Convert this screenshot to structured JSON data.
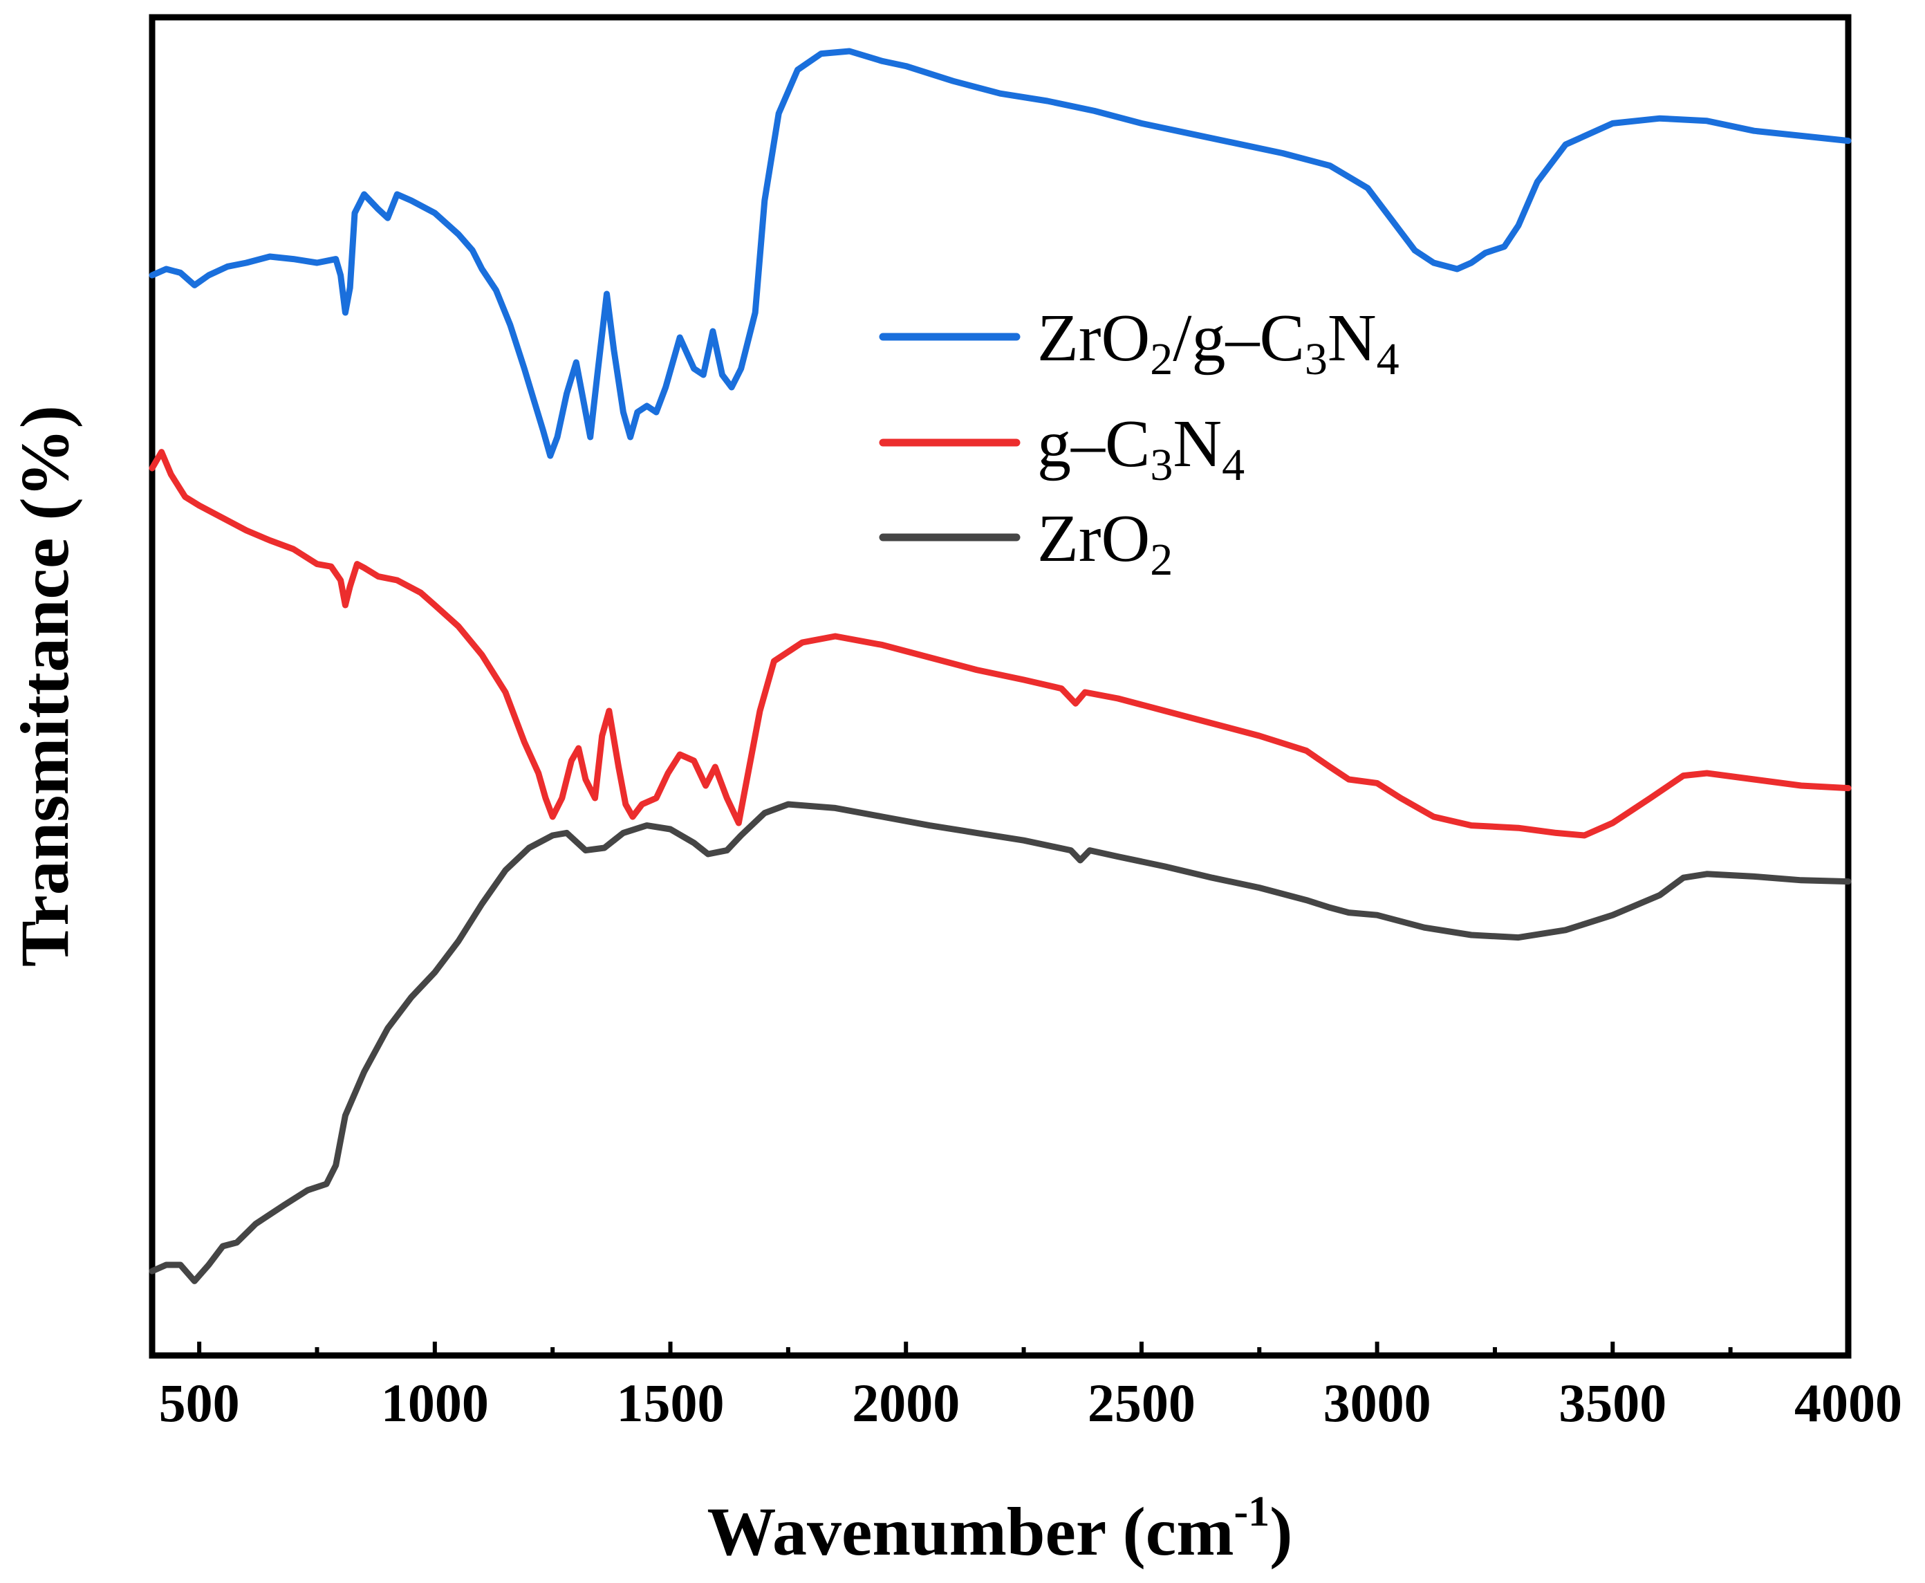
{
  "chart_data": {
    "type": "line",
    "title": "",
    "xlabel": {
      "main": "Wavenumber (cm",
      "sup": "-1",
      "close": ")"
    },
    "ylabel": "Transmittance (%)",
    "xlim": [
      400,
      4000
    ],
    "ylim": [
      0,
      100
    ],
    "x_ticks": [
      500,
      1000,
      1500,
      2000,
      2500,
      3000,
      3500,
      4000
    ],
    "x_tick_labels": [
      "500",
      "1000",
      "1500",
      "2000",
      "2500",
      "3000",
      "3500",
      "4000"
    ],
    "y_ticks_shown": false,
    "legend_position": "upper-right",
    "series": [
      {
        "name": "ZrO2/g-C3N4",
        "label_parts": [
          [
            "ZrO",
            ""
          ],
          [
            "2",
            "sub"
          ],
          [
            "/g–C",
            ""
          ],
          [
            "3",
            "sub"
          ],
          [
            "N",
            ""
          ],
          [
            "4",
            "sub"
          ]
        ],
        "color": "#1a6fdc",
        "points": [
          [
            400,
            84.0
          ],
          [
            430,
            84.5
          ],
          [
            460,
            84.2
          ],
          [
            490,
            83.2
          ],
          [
            520,
            84.0
          ],
          [
            560,
            84.7
          ],
          [
            600,
            85.0
          ],
          [
            650,
            85.5
          ],
          [
            700,
            85.3
          ],
          [
            750,
            85.0
          ],
          [
            790,
            85.3
          ],
          [
            800,
            84.0
          ],
          [
            810,
            81.0
          ],
          [
            820,
            83.0
          ],
          [
            830,
            89.0
          ],
          [
            850,
            90.5
          ],
          [
            880,
            89.3
          ],
          [
            900,
            88.6
          ],
          [
            920,
            90.5
          ],
          [
            950,
            90.0
          ],
          [
            1000,
            89.0
          ],
          [
            1050,
            87.3
          ],
          [
            1080,
            86.0
          ],
          [
            1100,
            84.5
          ],
          [
            1130,
            82.8
          ],
          [
            1160,
            80.0
          ],
          [
            1190,
            76.5
          ],
          [
            1210,
            74.0
          ],
          [
            1230,
            71.5
          ],
          [
            1245,
            69.5
          ],
          [
            1260,
            71.0
          ],
          [
            1280,
            74.5
          ],
          [
            1300,
            77.0
          ],
          [
            1315,
            74.0
          ],
          [
            1330,
            71.0
          ],
          [
            1345,
            76.0
          ],
          [
            1365,
            82.5
          ],
          [
            1380,
            78.0
          ],
          [
            1400,
            73.0
          ],
          [
            1415,
            71.0
          ],
          [
            1430,
            73.0
          ],
          [
            1450,
            73.5
          ],
          [
            1470,
            73.0
          ],
          [
            1490,
            75.0
          ],
          [
            1520,
            79.0
          ],
          [
            1550,
            76.5
          ],
          [
            1570,
            76.0
          ],
          [
            1590,
            79.5
          ],
          [
            1610,
            76.0
          ],
          [
            1630,
            75.0
          ],
          [
            1650,
            76.5
          ],
          [
            1680,
            81.0
          ],
          [
            1700,
            90.0
          ],
          [
            1730,
            97.0
          ],
          [
            1770,
            100.5
          ],
          [
            1820,
            101.8
          ],
          [
            1880,
            102.0
          ],
          [
            1950,
            101.2
          ],
          [
            2000,
            100.8
          ],
          [
            2100,
            99.6
          ],
          [
            2200,
            98.6
          ],
          [
            2300,
            98.0
          ],
          [
            2400,
            97.2
          ],
          [
            2500,
            96.2
          ],
          [
            2600,
            95.4
          ],
          [
            2700,
            94.6
          ],
          [
            2800,
            93.8
          ],
          [
            2900,
            92.8
          ],
          [
            2980,
            91.0
          ],
          [
            3030,
            88.5
          ],
          [
            3080,
            86.0
          ],
          [
            3120,
            85.0
          ],
          [
            3170,
            84.5
          ],
          [
            3200,
            85.0
          ],
          [
            3230,
            85.8
          ],
          [
            3270,
            86.3
          ],
          [
            3300,
            88.0
          ],
          [
            3340,
            91.5
          ],
          [
            3400,
            94.5
          ],
          [
            3500,
            96.2
          ],
          [
            3600,
            96.6
          ],
          [
            3700,
            96.4
          ],
          [
            3800,
            95.6
          ],
          [
            3900,
            95.2
          ],
          [
            4000,
            94.8
          ]
        ]
      },
      {
        "name": "g-C3N4",
        "label_parts": [
          [
            "g–C",
            ""
          ],
          [
            "3",
            "sub"
          ],
          [
            "N",
            ""
          ],
          [
            "4",
            "sub"
          ]
        ],
        "color": "#ec2d2d",
        "points": [
          [
            400,
            68.5
          ],
          [
            420,
            69.8
          ],
          [
            440,
            68.0
          ],
          [
            470,
            66.2
          ],
          [
            500,
            65.5
          ],
          [
            550,
            64.5
          ],
          [
            600,
            63.5
          ],
          [
            650,
            62.7
          ],
          [
            700,
            62.0
          ],
          [
            750,
            60.8
          ],
          [
            780,
            60.6
          ],
          [
            800,
            59.5
          ],
          [
            810,
            57.5
          ],
          [
            820,
            59.0
          ],
          [
            835,
            60.8
          ],
          [
            850,
            60.5
          ],
          [
            880,
            59.8
          ],
          [
            920,
            59.5
          ],
          [
            970,
            58.5
          ],
          [
            1000,
            57.5
          ],
          [
            1050,
            55.8
          ],
          [
            1100,
            53.5
          ],
          [
            1150,
            50.5
          ],
          [
            1190,
            46.5
          ],
          [
            1220,
            44.0
          ],
          [
            1235,
            42.0
          ],
          [
            1250,
            40.5
          ],
          [
            1270,
            42.0
          ],
          [
            1290,
            45.0
          ],
          [
            1305,
            46.0
          ],
          [
            1320,
            43.5
          ],
          [
            1340,
            42.0
          ],
          [
            1355,
            47.0
          ],
          [
            1370,
            49.0
          ],
          [
            1390,
            44.5
          ],
          [
            1405,
            41.5
          ],
          [
            1420,
            40.5
          ],
          [
            1440,
            41.5
          ],
          [
            1470,
            42.0
          ],
          [
            1495,
            44.0
          ],
          [
            1520,
            45.5
          ],
          [
            1550,
            45.0
          ],
          [
            1575,
            43.0
          ],
          [
            1595,
            44.5
          ],
          [
            1620,
            42.0
          ],
          [
            1645,
            40.0
          ],
          [
            1660,
            43.0
          ],
          [
            1690,
            49.0
          ],
          [
            1720,
            53.0
          ],
          [
            1780,
            54.5
          ],
          [
            1850,
            55.0
          ],
          [
            1950,
            54.3
          ],
          [
            2050,
            53.3
          ],
          [
            2150,
            52.3
          ],
          [
            2250,
            51.5
          ],
          [
            2330,
            50.8
          ],
          [
            2360,
            49.6
          ],
          [
            2380,
            50.5
          ],
          [
            2450,
            50.0
          ],
          [
            2550,
            49.0
          ],
          [
            2650,
            48.0
          ],
          [
            2750,
            47.0
          ],
          [
            2850,
            45.8
          ],
          [
            2900,
            44.5
          ],
          [
            2940,
            43.5
          ],
          [
            3000,
            43.2
          ],
          [
            3050,
            42.0
          ],
          [
            3120,
            40.5
          ],
          [
            3200,
            39.8
          ],
          [
            3300,
            39.6
          ],
          [
            3380,
            39.2
          ],
          [
            3440,
            39.0
          ],
          [
            3500,
            40.0
          ],
          [
            3580,
            42.0
          ],
          [
            3650,
            43.8
          ],
          [
            3700,
            44.0
          ],
          [
            3800,
            43.5
          ],
          [
            3900,
            43.0
          ],
          [
            4000,
            42.8
          ]
        ]
      },
      {
        "name": "ZrO2",
        "label_parts": [
          [
            "ZrO",
            ""
          ],
          [
            "2",
            "sub"
          ]
        ],
        "color": "#454545",
        "points": [
          [
            400,
            4.0
          ],
          [
            430,
            4.5
          ],
          [
            460,
            4.5
          ],
          [
            490,
            3.2
          ],
          [
            520,
            4.5
          ],
          [
            550,
            6.0
          ],
          [
            580,
            6.3
          ],
          [
            620,
            7.8
          ],
          [
            680,
            9.3
          ],
          [
            730,
            10.5
          ],
          [
            770,
            11.0
          ],
          [
            790,
            12.5
          ],
          [
            810,
            16.5
          ],
          [
            850,
            20.0
          ],
          [
            900,
            23.5
          ],
          [
            950,
            26.0
          ],
          [
            1000,
            28.0
          ],
          [
            1050,
            30.5
          ],
          [
            1100,
            33.5
          ],
          [
            1150,
            36.2
          ],
          [
            1200,
            38.0
          ],
          [
            1250,
            39.0
          ],
          [
            1280,
            39.2
          ],
          [
            1320,
            37.8
          ],
          [
            1360,
            38.0
          ],
          [
            1400,
            39.2
          ],
          [
            1450,
            39.8
          ],
          [
            1500,
            39.5
          ],
          [
            1550,
            38.4
          ],
          [
            1580,
            37.5
          ],
          [
            1620,
            37.8
          ],
          [
            1650,
            39.0
          ],
          [
            1700,
            40.8
          ],
          [
            1750,
            41.5
          ],
          [
            1850,
            41.2
          ],
          [
            1950,
            40.5
          ],
          [
            2050,
            39.8
          ],
          [
            2150,
            39.2
          ],
          [
            2250,
            38.6
          ],
          [
            2350,
            37.8
          ],
          [
            2370,
            37.0
          ],
          [
            2390,
            37.8
          ],
          [
            2450,
            37.3
          ],
          [
            2550,
            36.5
          ],
          [
            2650,
            35.6
          ],
          [
            2750,
            34.8
          ],
          [
            2850,
            33.8
          ],
          [
            2900,
            33.2
          ],
          [
            2940,
            32.8
          ],
          [
            3000,
            32.6
          ],
          [
            3100,
            31.6
          ],
          [
            3200,
            31.0
          ],
          [
            3300,
            30.8
          ],
          [
            3400,
            31.4
          ],
          [
            3500,
            32.6
          ],
          [
            3600,
            34.2
          ],
          [
            3650,
            35.6
          ],
          [
            3700,
            35.9
          ],
          [
            3800,
            35.7
          ],
          [
            3900,
            35.4
          ],
          [
            4000,
            35.3
          ]
        ]
      }
    ]
  }
}
